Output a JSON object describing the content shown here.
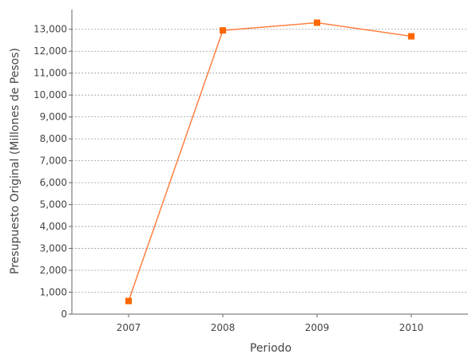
{
  "chart_data": {
    "type": "line",
    "title": "",
    "xlabel": "Periodo",
    "ylabel": "Presupuesto Original (Millones de Pesos)",
    "categories": [
      "2007",
      "2008",
      "2009",
      "2010"
    ],
    "series": [
      {
        "values": [
          600,
          12950,
          13300,
          12680
        ],
        "color": "#ff6600"
      }
    ],
    "ylim": [
      0,
      13900
    ],
    "yticks": [
      0,
      1000,
      2000,
      3000,
      4000,
      5000,
      6000,
      7000,
      8000,
      9000,
      10000,
      11000,
      12000,
      13000
    ],
    "ytick_labels": [
      "0",
      "1,000",
      "2,000",
      "3,000",
      "4,000",
      "5,000",
      "6,000",
      "7,000",
      "8,000",
      "9,000",
      "10,000",
      "11,000",
      "12,000",
      "13,000"
    ],
    "grid": true,
    "legend": "none",
    "colors": {
      "line": "#ff8040",
      "marker": "#ff6600",
      "grid": "#999999",
      "axis": "#666666",
      "text": "#444444"
    }
  }
}
